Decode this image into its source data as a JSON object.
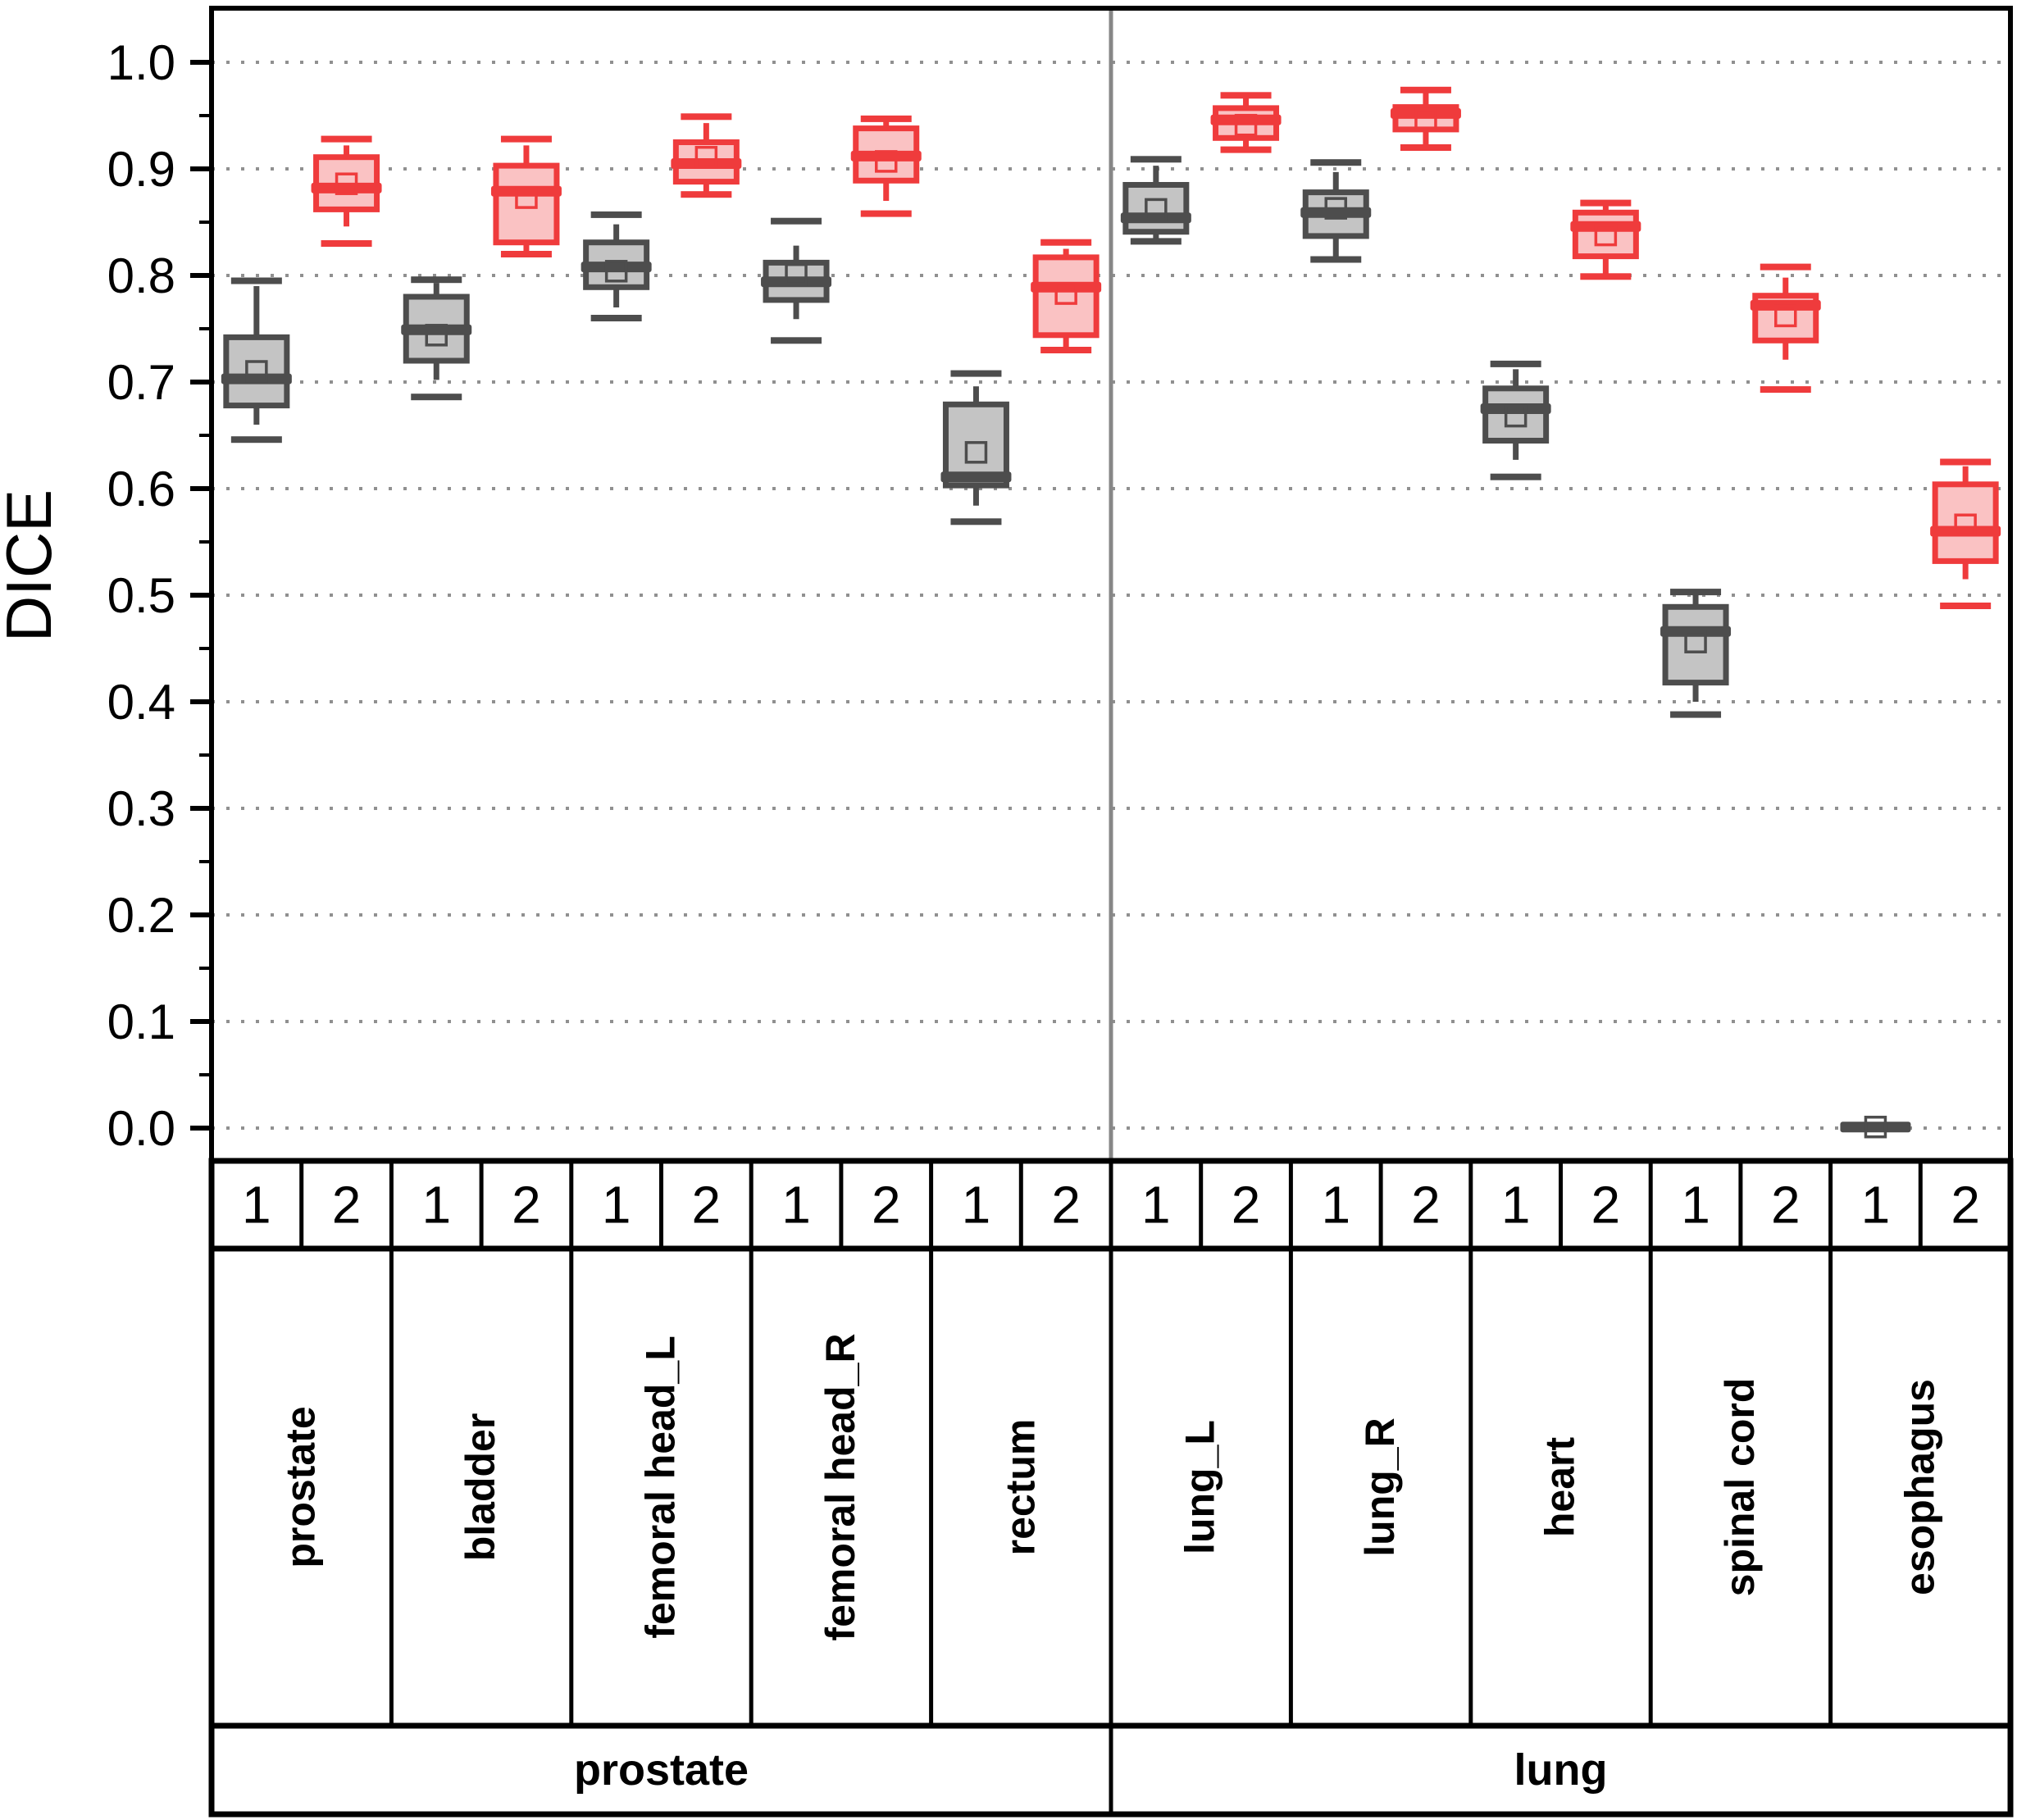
{
  "page": {
    "background": "#ffffff"
  },
  "colors": {
    "series1_stroke": "#4D4D4D",
    "series1_fill": "#C4C4C4",
    "series2_stroke": "#EF3B3C",
    "series2_fill": "#FAC2C3",
    "grid_dots": "#909090",
    "group_divider": "#878787",
    "frame": "#000000"
  },
  "y_axis": {
    "title": "DICE",
    "tick_labels": [
      "1.0",
      "0.9",
      "0.8",
      "0.7",
      "0.6",
      "0.5",
      "0.4",
      "0.3",
      "0.2",
      "0.1",
      "0.0"
    ],
    "tick_values": [
      1.0,
      0.9,
      0.8,
      0.7,
      0.6,
      0.5,
      0.4,
      0.3,
      0.2,
      0.1,
      0.0
    ]
  },
  "x_axis": {
    "series_labels": [
      "1",
      "2"
    ],
    "organ_labels": [
      "prostate",
      "bladder",
      "femoral head_L",
      "femoral head_R",
      "rectum",
      "lung_L",
      "lung_R",
      "heart",
      "spinal cord",
      "esophagus"
    ],
    "group_labels": [
      "prostate",
      "lung"
    ],
    "organs_per_group": 5
  },
  "chart_data": {
    "type": "box",
    "title": "",
    "xlabel": "",
    "ylabel": "DICE",
    "ylim": [
      -0.032,
      1.048
    ],
    "yticks": [
      0.0,
      0.1,
      0.2,
      0.3,
      0.4,
      0.5,
      0.6,
      0.7,
      0.8,
      0.9,
      1.0
    ],
    "grid": "horizontal dotted at every 0.1",
    "legend_position": "none",
    "groups": [
      "prostate",
      "lung"
    ],
    "categories": [
      "prostate",
      "bladder",
      "femoral head_L",
      "femoral head_R",
      "rectum",
      "lung_L",
      "lung_R",
      "heart",
      "spinal cord",
      "esophagus"
    ],
    "series_labels": [
      "1",
      "2"
    ],
    "boxes": [
      {
        "organ": "prostate",
        "group": "prostate",
        "series": "1",
        "min": 0.646,
        "whisker_low": 0.66,
        "q1": 0.678,
        "median": 0.703,
        "mean": 0.71,
        "q3": 0.742,
        "whisker_high": 0.79,
        "max": 0.795
      },
      {
        "organ": "prostate",
        "group": "prostate",
        "series": "2",
        "min": 0.83,
        "whisker_low": 0.846,
        "q1": 0.862,
        "median": 0.882,
        "mean": 0.886,
        "q3": 0.911,
        "whisker_high": 0.922,
        "max": 0.928
      },
      {
        "organ": "bladder",
        "group": "prostate",
        "series": "1",
        "min": 0.686,
        "whisker_low": 0.702,
        "q1": 0.72,
        "median": 0.749,
        "mean": 0.744,
        "q3": 0.78,
        "whisker_high": 0.793,
        "max": 0.796
      },
      {
        "organ": "bladder",
        "group": "prostate",
        "series": "2",
        "min": 0.82,
        "whisker_low": 0.822,
        "q1": 0.831,
        "median": 0.879,
        "mean": 0.873,
        "q3": 0.903,
        "whisker_high": 0.922,
        "max": 0.928
      },
      {
        "organ": "femoral head_L",
        "group": "prostate",
        "series": "1",
        "min": 0.76,
        "whisker_low": 0.77,
        "q1": 0.789,
        "median": 0.808,
        "mean": 0.804,
        "q3": 0.831,
        "whisker_high": 0.848,
        "max": 0.857
      },
      {
        "organ": "femoral head_L",
        "group": "prostate",
        "series": "2",
        "min": 0.876,
        "whisker_low": 0.878,
        "q1": 0.888,
        "median": 0.905,
        "mean": 0.911,
        "q3": 0.925,
        "whisker_high": 0.943,
        "max": 0.949
      },
      {
        "organ": "femoral head_R",
        "group": "prostate",
        "series": "1",
        "min": 0.739,
        "whisker_low": 0.759,
        "q1": 0.777,
        "median": 0.794,
        "mean": 0.801,
        "q3": 0.812,
        "whisker_high": 0.828,
        "max": 0.851
      },
      {
        "organ": "femoral head_R",
        "group": "prostate",
        "series": "2",
        "min": 0.858,
        "whisker_low": 0.87,
        "q1": 0.889,
        "median": 0.912,
        "mean": 0.907,
        "q3": 0.938,
        "whisker_high": 0.945,
        "max": 0.947
      },
      {
        "organ": "rectum",
        "group": "prostate",
        "series": "1",
        "min": 0.569,
        "whisker_low": 0.584,
        "q1": 0.603,
        "median": 0.611,
        "mean": 0.634,
        "q3": 0.679,
        "whisker_high": 0.696,
        "max": 0.708
      },
      {
        "organ": "rectum",
        "group": "prostate",
        "series": "2",
        "min": 0.73,
        "whisker_low": 0.732,
        "q1": 0.744,
        "median": 0.789,
        "mean": 0.783,
        "q3": 0.817,
        "whisker_high": 0.825,
        "max": 0.831
      },
      {
        "organ": "lung_L",
        "group": "lung",
        "series": "1",
        "min": 0.832,
        "whisker_low": 0.834,
        "q1": 0.841,
        "median": 0.854,
        "mean": 0.862,
        "q3": 0.885,
        "whisker_high": 0.903,
        "max": 0.909
      },
      {
        "organ": "lung_L",
        "group": "lung",
        "series": "2",
        "min": 0.918,
        "whisker_low": 0.92,
        "q1": 0.929,
        "median": 0.946,
        "mean": 0.941,
        "q3": 0.957,
        "whisker_high": 0.967,
        "max": 0.969
      },
      {
        "organ": "lung_R",
        "group": "lung",
        "series": "1",
        "min": 0.815,
        "whisker_low": 0.818,
        "q1": 0.837,
        "median": 0.859,
        "mean": 0.863,
        "q3": 0.878,
        "whisker_high": 0.897,
        "max": 0.906
      },
      {
        "organ": "lung_R",
        "group": "lung",
        "series": "2",
        "min": 0.92,
        "whisker_low": 0.921,
        "q1": 0.937,
        "median": 0.952,
        "mean": 0.946,
        "q3": 0.958,
        "whisker_high": 0.972,
        "max": 0.974
      },
      {
        "organ": "heart",
        "group": "lung",
        "series": "1",
        "min": 0.611,
        "whisker_low": 0.627,
        "q1": 0.645,
        "median": 0.675,
        "mean": 0.668,
        "q3": 0.694,
        "whisker_high": 0.712,
        "max": 0.717
      },
      {
        "organ": "heart",
        "group": "lung",
        "series": "2",
        "min": 0.799,
        "whisker_low": 0.801,
        "q1": 0.818,
        "median": 0.846,
        "mean": 0.838,
        "q3": 0.859,
        "whisker_high": 0.866,
        "max": 0.868
      },
      {
        "organ": "spinal cord",
        "group": "lung",
        "series": "1",
        "min": 0.388,
        "whisker_low": 0.4,
        "q1": 0.418,
        "median": 0.466,
        "mean": 0.456,
        "q3": 0.489,
        "whisker_high": 0.5,
        "max": 0.503
      },
      {
        "organ": "spinal cord",
        "group": "lung",
        "series": "2",
        "min": 0.693,
        "whisker_low": 0.721,
        "q1": 0.739,
        "median": 0.772,
        "mean": 0.762,
        "q3": 0.781,
        "whisker_high": 0.798,
        "max": 0.808
      },
      {
        "organ": "esophagus",
        "group": "lung",
        "series": "1",
        "min": 0.0,
        "whisker_low": 0.0,
        "q1": 0.0,
        "median": 0.001,
        "mean": 0.001,
        "q3": 0.002,
        "whisker_high": 0.002,
        "max": 0.002
      },
      {
        "organ": "esophagus",
        "group": "lung",
        "series": "2",
        "min": 0.49,
        "whisker_low": 0.515,
        "q1": 0.532,
        "median": 0.56,
        "mean": 0.566,
        "q3": 0.604,
        "whisker_high": 0.621,
        "max": 0.625
      }
    ]
  }
}
